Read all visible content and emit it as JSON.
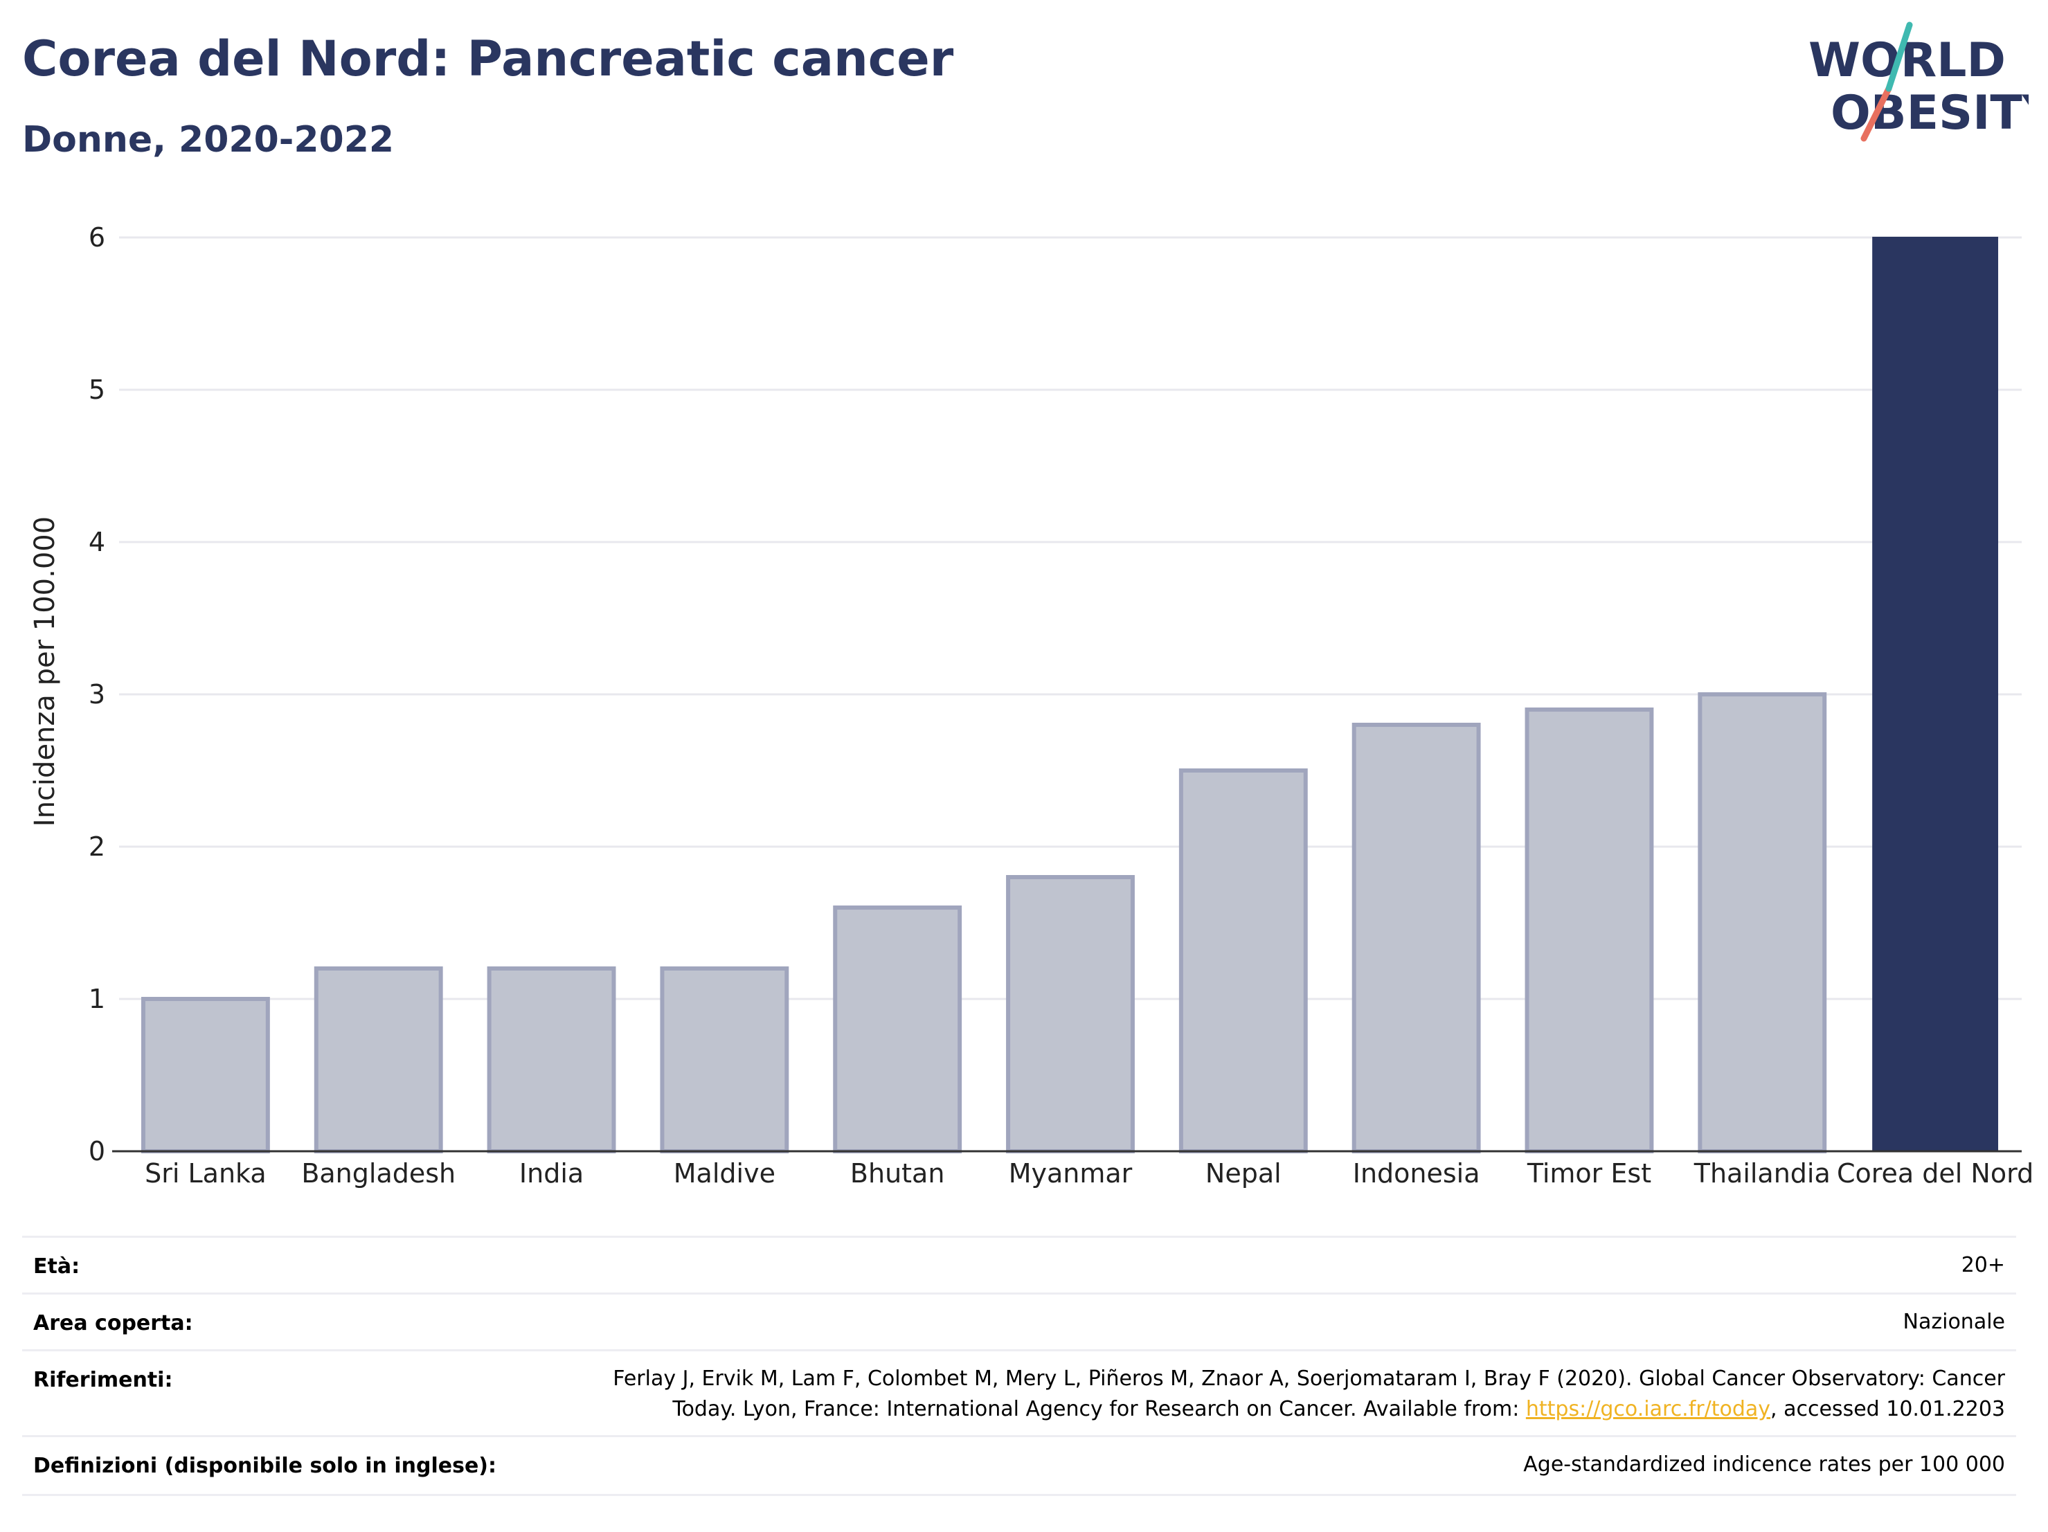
{
  "header": {
    "title": "Corea del Nord: Pancreatic cancer",
    "subtitle": "Donne, 2020-2022"
  },
  "logo": {
    "line1": "WORLD",
    "line2": "OBESITY"
  },
  "colors": {
    "highlight": "#2a3660",
    "other": "#bfc3cf",
    "other_stroke": "#a0a5bd",
    "grid": "#e8e8ee",
    "title": "#2a3660",
    "link": "#f0b323"
  },
  "chart_data": {
    "type": "bar",
    "ylabel": "Incidenza per 100.000",
    "ylim": [
      0,
      6
    ],
    "yticks": [
      0,
      1,
      2,
      3,
      4,
      5,
      6
    ],
    "categories": [
      "Sri Lanka",
      "Bangladesh",
      "India",
      "Maldive",
      "Bhutan",
      "Myanmar",
      "Nepal",
      "Indonesia",
      "Timor Est",
      "Thailandia",
      "Corea del Nord"
    ],
    "values": [
      1.0,
      1.2,
      1.2,
      1.2,
      1.6,
      1.8,
      2.5,
      2.8,
      2.9,
      3.0,
      6.0
    ],
    "highlight": "Corea del Nord",
    "grid": true
  },
  "meta": {
    "age_label": "Età:",
    "age_value": "20+",
    "area_label": "Area coperta:",
    "area_value": "Nazionale",
    "ref_label": "Riferimenti:",
    "ref_line1": "Ferlay J, Ervik M, Lam F, Colombet M, Mery L, Piñeros M, Znaor A, Soerjomataram I, Bray F (2020). Global Cancer Observatory: Cancer",
    "ref_line2_pre": "Today. Lyon, France: International Agency for Research on Cancer. Available from: ",
    "ref_link": "https://gco.iarc.fr/today",
    "ref_line2_post": ", accessed 10.01.2203",
    "def_label": "Definizioni (disponibile solo in inglese):",
    "def_value": "Age-standardized indicence rates per 100 000"
  }
}
